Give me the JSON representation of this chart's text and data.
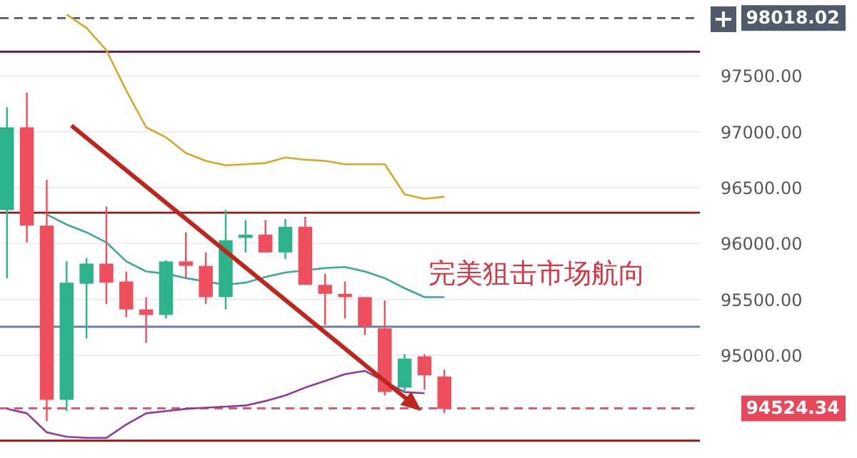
{
  "chart_data": {
    "type": "candlestick",
    "categories": [
      null,
      null,
      null,
      null,
      null,
      null,
      null,
      null,
      null,
      null,
      null,
      null,
      null,
      null,
      null,
      null,
      null,
      null,
      null,
      null,
      null,
      null,
      null
    ],
    "ohlc": [
      [
        96300,
        97220,
        95690,
        97040
      ],
      [
        97040,
        97350,
        96010,
        96160
      ],
      [
        96160,
        96570,
        94410,
        94600
      ],
      [
        94600,
        95840,
        94500,
        95650
      ],
      [
        95640,
        95870,
        95150,
        95820
      ],
      [
        95820,
        96330,
        95460,
        95650
      ],
      [
        95660,
        95750,
        95340,
        95410
      ],
      [
        95410,
        95520,
        95110,
        95360
      ],
      [
        95360,
        95850,
        95330,
        95840
      ],
      [
        95840,
        96100,
        95690,
        95800
      ],
      [
        95800,
        95920,
        95460,
        95520
      ],
      [
        95520,
        96300,
        95410,
        96030
      ],
      [
        96050,
        96210,
        95920,
        96080
      ],
      [
        96080,
        96210,
        95920,
        95920
      ],
      [
        95920,
        96220,
        95860,
        96150
      ],
      [
        96150,
        96240,
        95630,
        95630
      ],
      [
        95630,
        95730,
        95270,
        95550
      ],
      [
        95550,
        95660,
        95330,
        95520
      ],
      [
        95520,
        95520,
        95180,
        95260
      ],
      [
        95240,
        95490,
        94640,
        94670
      ],
      [
        94710,
        95010,
        94670,
        94970
      ],
      [
        94990,
        95010,
        94690,
        94820
      ],
      [
        94810,
        94870,
        94480,
        94520
      ]
    ],
    "series": [
      {
        "type": "line",
        "color": "#d4a92a",
        "values": [
          null,
          null,
          null,
          98050,
          97930,
          97730,
          97370,
          97040,
          96950,
          96810,
          96740,
          96700,
          96710,
          96720,
          96770,
          96750,
          96740,
          96710,
          96710,
          96710,
          96440,
          96400,
          96420
        ]
      },
      {
        "type": "line",
        "color": "#3aa89a",
        "values": [
          null,
          null,
          96260,
          96170,
          96100,
          96010,
          95840,
          95750,
          95730,
          95690,
          null,
          95630,
          95650,
          95700,
          95740,
          null,
          95780,
          95790,
          95750,
          95690,
          95600,
          95520,
          95520
        ]
      },
      {
        "type": "line",
        "color": "#8e3a9c",
        "values": [
          94520,
          94480,
          94310,
          94270,
          94260,
          94260,
          94380,
          94480,
          94500,
          94520,
          94530,
          94540,
          94550,
          94590,
          94640,
          94710,
          94770,
          94830,
          94860,
          null,
          94670,
          94660,
          null
        ]
      }
    ],
    "ylim": [
      94080,
      98180
    ],
    "yticks": [
      {
        "value": 95000,
        "label": "95000.00"
      },
      {
        "value": 95500,
        "label": "95500.00"
      },
      {
        "value": 96000,
        "label": "96000.00"
      },
      {
        "value": 96500,
        "label": "96500.00"
      },
      {
        "value": 97000,
        "label": "97000.00"
      },
      {
        "value": 97500,
        "label": "97500.00"
      }
    ],
    "grid": "y",
    "ref_lines": [
      {
        "axis": "y",
        "value": 98018.02,
        "label": "98018.02",
        "color": "#4f5b6b",
        "line_style": "dashed"
      },
      {
        "axis": "y",
        "value": 97717,
        "color": "#6a1b5a",
        "line_style": "solid"
      },
      {
        "axis": "y",
        "value": 96276,
        "color": "#8b1a1a",
        "line_style": "solid"
      },
      {
        "axis": "y",
        "value": 95255,
        "color": "#6b7f99",
        "line_style": "solid"
      },
      {
        "axis": "y",
        "value": 94524.34,
        "label": "94524.34",
        "color": "#e8495a",
        "line_style": "dashed"
      },
      {
        "axis": "y",
        "value": 94235,
        "color": "#8b1a1a",
        "line_style": "solid"
      }
    ],
    "annotations": [
      "完美狙击市场航向"
    ]
  }
}
